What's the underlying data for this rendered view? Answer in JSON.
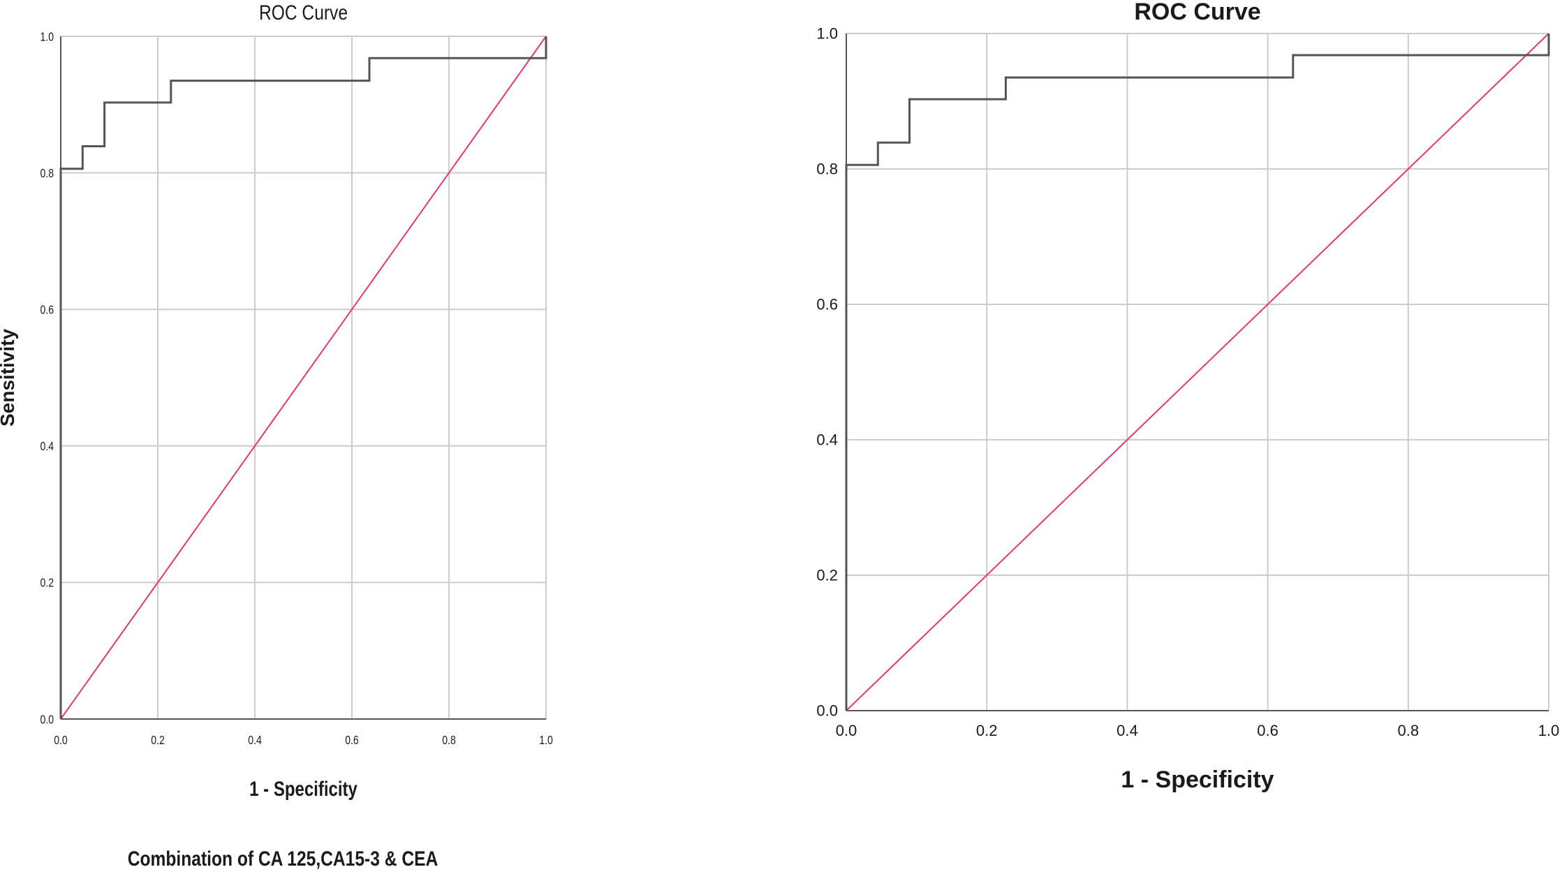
{
  "chart_data": [
    {
      "type": "line",
      "title": "ROC Curve",
      "xlabel": "1 - Specificity",
      "ylabel": "Sensitivity",
      "caption": "Combination of CA 125,CA15-3 & CEA",
      "xlim": [
        0.0,
        1.0
      ],
      "ylim": [
        0.0,
        1.0
      ],
      "xticks": [
        "0.0",
        "0.2",
        "0.4",
        "0.6",
        "0.8",
        "1.0"
      ],
      "yticks": [
        "0.0",
        "0.2",
        "0.4",
        "0.6",
        "0.8",
        "1.0"
      ],
      "grid": true,
      "colors": {
        "roc": "#555555",
        "reference": "#e8356a",
        "grid": "#cccccc"
      },
      "series": [
        {
          "x": [
            0.0,
            0.0,
            0.045,
            0.045,
            0.09,
            0.09,
            0.227,
            0.227,
            0.636,
            0.636,
            1.0,
            1.0
          ],
          "y": [
            0.0,
            0.806,
            0.806,
            0.839,
            0.839,
            0.903,
            0.903,
            0.935,
            0.935,
            0.968,
            0.968,
            1.0
          ]
        },
        {
          "x": [
            0.0,
            1.0
          ],
          "y": [
            0.0,
            1.0
          ]
        }
      ]
    },
    {
      "type": "line",
      "title": "ROC Curve",
      "xlabel": "1 - Specificity",
      "ylabel": "",
      "xlim": [
        0.0,
        1.0
      ],
      "ylim": [
        0.0,
        1.0
      ],
      "xticks": [
        "0.0",
        "0.2",
        "0.4",
        "0.6",
        "0.8",
        "1.0"
      ],
      "yticks": [
        "0.0",
        "0.2",
        "0.4",
        "0.6",
        "0.8",
        "1.0"
      ],
      "grid": true,
      "colors": {
        "roc": "#555555",
        "reference": "#e8356a",
        "grid": "#cccccc"
      },
      "series": [
        {
          "x": [
            0.0,
            0.0,
            0.045,
            0.045,
            0.09,
            0.09,
            0.227,
            0.227,
            0.636,
            0.636,
            1.0,
            1.0
          ],
          "y": [
            0.0,
            0.806,
            0.806,
            0.839,
            0.839,
            0.903,
            0.903,
            0.935,
            0.935,
            0.968,
            0.968,
            1.0
          ]
        },
        {
          "x": [
            0.0,
            1.0
          ],
          "y": [
            0.0,
            1.0
          ]
        }
      ]
    }
  ]
}
